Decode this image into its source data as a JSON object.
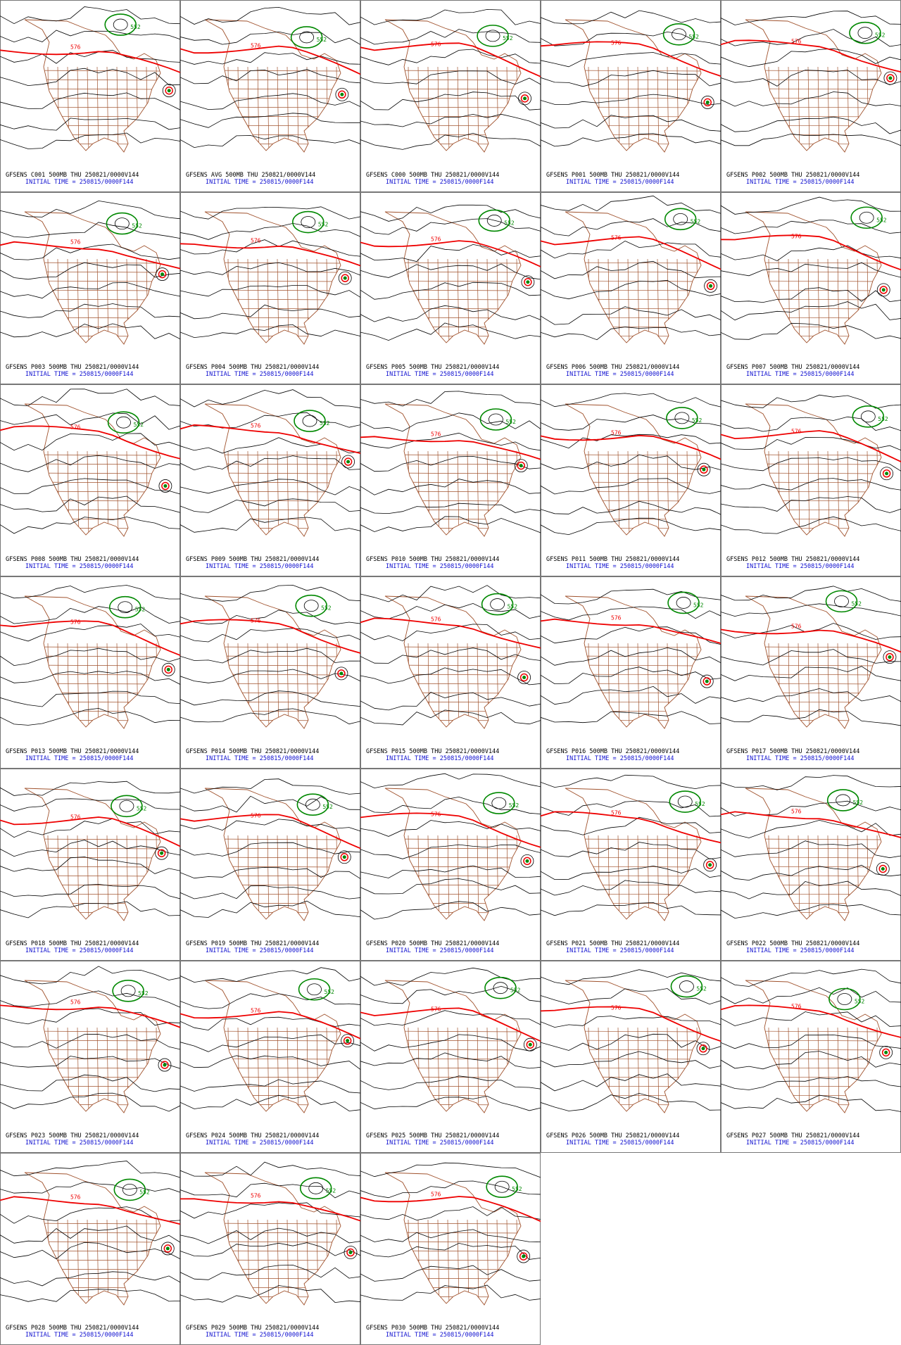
{
  "contour_labels": {
    "red": "576",
    "green": "552"
  },
  "panels": [
    {
      "title": "GFSENS C001 500MB THU 250821/0000V144",
      "initial": "INITIAL TIME = 250815/0000F144"
    },
    {
      "title": "GFSENS AVG 500MB THU 250821/0000V144",
      "initial": "INITIAL TIME = 250815/0000F144"
    },
    {
      "title": "GFSENS C000 500MB THU 250821/0000V144",
      "initial": "INITIAL TIME = 250815/0000F144"
    },
    {
      "title": "GFSENS P001 500MB THU 250821/0000V144",
      "initial": "INITIAL TIME = 250815/0000F144"
    },
    {
      "title": "GFSENS P002 500MB THU 250821/0000V144",
      "initial": "INITIAL TIME = 250815/0000F144"
    },
    {
      "title": "GFSENS P003 500MB THU 250821/0000V144",
      "initial": "INITIAL TIME = 250815/0000F144"
    },
    {
      "title": "GFSENS P004 500MB THU 250821/0000V144",
      "initial": "INITIAL TIME = 250815/0000F144"
    },
    {
      "title": "GFSENS P005 500MB THU 250821/0000V144",
      "initial": "INITIAL TIME = 250815/0000F144"
    },
    {
      "title": "GFSENS P006 500MB THU 250821/0000V144",
      "initial": "INITIAL TIME = 250815/0000F144"
    },
    {
      "title": "GFSENS P007 500MB THU 250821/0000V144",
      "initial": "INITIAL TIME = 250815/0000F144"
    },
    {
      "title": "GFSENS P008 500MB THU 250821/0000V144",
      "initial": "INITIAL TIME = 250815/0000F144"
    },
    {
      "title": "GFSENS P009 500MB THU 250821/0000V144",
      "initial": "INITIAL TIME = 250815/0000F144"
    },
    {
      "title": "GFSENS P010 500MB THU 250821/0000V144",
      "initial": "INITIAL TIME = 250815/0000F144"
    },
    {
      "title": "GFSENS P011 500MB THU 250821/0000V144",
      "initial": "INITIAL TIME = 250815/0000F144"
    },
    {
      "title": "GFSENS P012 500MB THU 250821/0000V144",
      "initial": "INITIAL TIME = 250815/0000F144"
    },
    {
      "title": "GFSENS P013 500MB THU 250821/0000V144",
      "initial": "INITIAL TIME = 250815/0000F144"
    },
    {
      "title": "GFSENS P014 500MB THU 250821/0000V144",
      "initial": "INITIAL TIME = 250815/0000F144"
    },
    {
      "title": "GFSENS P015 500MB THU 250821/0000V144",
      "initial": "INITIAL TIME = 250815/0000F144"
    },
    {
      "title": "GFSENS P016 500MB THU 250821/0000V144",
      "initial": "INITIAL TIME = 250815/0000F144"
    },
    {
      "title": "GFSENS P017 500MB THU 250821/0000V144",
      "initial": "INITIAL TIME = 250815/0000F144"
    },
    {
      "title": "GFSENS P018 500MB THU 250821/0000V144",
      "initial": "INITIAL TIME = 250815/0000F144"
    },
    {
      "title": "GFSENS P019 500MB THU 250821/0000V144",
      "initial": "INITIAL TIME = 250815/0000F144"
    },
    {
      "title": "GFSENS P020 500MB THU 250821/0000V144",
      "initial": "INITIAL TIME = 250815/0000F144"
    },
    {
      "title": "GFSENS P021 500MB THU 250821/0000V144",
      "initial": "INITIAL TIME = 250815/0000F144"
    },
    {
      "title": "GFSENS P022 500MB THU 250821/0000V144",
      "initial": "INITIAL TIME = 250815/0000F144"
    },
    {
      "title": "GFSENS P023 500MB THU 250821/0000V144",
      "initial": "INITIAL TIME = 250815/0000F144"
    },
    {
      "title": "GFSENS P024 500MB THU 250821/0000V144",
      "initial": "INITIAL TIME = 250815/0000F144"
    },
    {
      "title": "GFSENS P025 500MB THU 250821/0000V144",
      "initial": "INITIAL TIME = 250815/0000F144"
    },
    {
      "title": "GFSENS P026 500MB THU 250821/0000V144",
      "initial": "INITIAL TIME = 250815/0000F144"
    },
    {
      "title": "GFSENS P027 500MB THU 250821/0000V144",
      "initial": "INITIAL TIME = 250815/0000F144"
    },
    {
      "title": "GFSENS P028 500MB THU 250821/0000V144",
      "initial": "INITIAL TIME = 250815/0000F144"
    },
    {
      "title": "GFSENS P029 500MB THU 250821/0000V144",
      "initial": "INITIAL TIME = 250815/0000F144"
    },
    {
      "title": "GFSENS P030 500MB THU 250821/0000V144",
      "initial": "INITIAL TIME = 250815/0000F144"
    }
  ]
}
